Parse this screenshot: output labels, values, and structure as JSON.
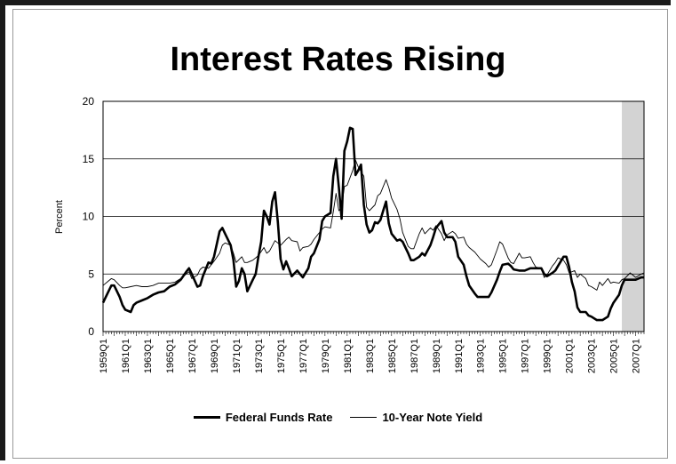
{
  "chart_data": {
    "type": "line",
    "title": "Interest Rates Rising",
    "ylabel": "Percent",
    "xlabel": "",
    "ylim": [
      0,
      20
    ],
    "yticks": [
      0,
      5,
      10,
      15,
      20
    ],
    "grid": "horizontal",
    "x_start_year": 1959,
    "x_end_year": 2007.75,
    "x_tick_labels": [
      "1959Q1",
      "1961Q1",
      "1963Q1",
      "1965Q1",
      "1967Q1",
      "1969Q1",
      "1971Q1",
      "1973Q1",
      "1975Q1",
      "1977Q1",
      "1979Q1",
      "1981Q1",
      "1983Q1",
      "1985Q1",
      "1987Q1",
      "1989Q1",
      "1991Q1",
      "1993Q1",
      "1995Q1",
      "1997Q1",
      "1999Q1",
      "2001Q1",
      "2003Q1",
      "2005Q1",
      "2007Q1"
    ],
    "shaded_region": {
      "start": 2005.75,
      "end": 2007.75,
      "color": "#d3d3d3"
    },
    "legend_position": "bottom",
    "series": [
      {
        "name": "Federal Funds Rate",
        "style": "thick",
        "color": "#000000",
        "points": [
          [
            1959.0,
            2.5
          ],
          [
            1959.5,
            3.5
          ],
          [
            1959.75,
            4.0
          ],
          [
            1960.0,
            4.0
          ],
          [
            1960.5,
            3.0
          ],
          [
            1960.75,
            2.3
          ],
          [
            1961.0,
            1.9
          ],
          [
            1961.5,
            1.7
          ],
          [
            1961.75,
            2.3
          ],
          [
            1962.0,
            2.5
          ],
          [
            1962.5,
            2.7
          ],
          [
            1963.0,
            2.9
          ],
          [
            1963.5,
            3.2
          ],
          [
            1964.0,
            3.4
          ],
          [
            1964.5,
            3.5
          ],
          [
            1965.0,
            3.9
          ],
          [
            1965.5,
            4.1
          ],
          [
            1966.0,
            4.5
          ],
          [
            1966.5,
            5.2
          ],
          [
            1966.75,
            5.5
          ],
          [
            1967.0,
            5.0
          ],
          [
            1967.5,
            3.9
          ],
          [
            1967.75,
            4.0
          ],
          [
            1968.0,
            4.8
          ],
          [
            1968.5,
            6.0
          ],
          [
            1968.75,
            5.9
          ],
          [
            1969.0,
            6.5
          ],
          [
            1969.5,
            8.7
          ],
          [
            1969.75,
            9.0
          ],
          [
            1970.0,
            8.5
          ],
          [
            1970.5,
            7.5
          ],
          [
            1970.75,
            6.2
          ],
          [
            1971.0,
            3.9
          ],
          [
            1971.25,
            4.4
          ],
          [
            1971.5,
            5.5
          ],
          [
            1971.75,
            5.0
          ],
          [
            1972.0,
            3.5
          ],
          [
            1972.5,
            4.5
          ],
          [
            1972.75,
            5.0
          ],
          [
            1973.0,
            6.5
          ],
          [
            1973.25,
            7.8
          ],
          [
            1973.5,
            10.5
          ],
          [
            1973.75,
            10.0
          ],
          [
            1974.0,
            9.3
          ],
          [
            1974.25,
            11.3
          ],
          [
            1974.5,
            12.1
          ],
          [
            1974.75,
            9.5
          ],
          [
            1975.0,
            6.3
          ],
          [
            1975.25,
            5.4
          ],
          [
            1975.5,
            6.1
          ],
          [
            1975.75,
            5.5
          ],
          [
            1976.0,
            4.8
          ],
          [
            1976.5,
            5.3
          ],
          [
            1976.75,
            5.0
          ],
          [
            1977.0,
            4.7
          ],
          [
            1977.5,
            5.5
          ],
          [
            1977.75,
            6.5
          ],
          [
            1978.0,
            6.8
          ],
          [
            1978.5,
            8.0
          ],
          [
            1978.75,
            9.6
          ],
          [
            1979.0,
            10.0
          ],
          [
            1979.5,
            10.3
          ],
          [
            1979.75,
            13.5
          ],
          [
            1980.0,
            15.0
          ],
          [
            1980.25,
            12.5
          ],
          [
            1980.5,
            9.8
          ],
          [
            1980.75,
            15.7
          ],
          [
            1981.0,
            16.5
          ],
          [
            1981.25,
            17.7
          ],
          [
            1981.5,
            17.6
          ],
          [
            1981.75,
            13.6
          ],
          [
            1982.0,
            14.0
          ],
          [
            1982.25,
            14.5
          ],
          [
            1982.5,
            11.0
          ],
          [
            1982.75,
            9.3
          ],
          [
            1983.0,
            8.6
          ],
          [
            1983.25,
            8.8
          ],
          [
            1983.5,
            9.5
          ],
          [
            1983.75,
            9.4
          ],
          [
            1984.0,
            9.7
          ],
          [
            1984.25,
            10.5
          ],
          [
            1984.5,
            11.3
          ],
          [
            1984.75,
            9.4
          ],
          [
            1985.0,
            8.5
          ],
          [
            1985.5,
            7.9
          ],
          [
            1985.75,
            8.0
          ],
          [
            1986.0,
            7.8
          ],
          [
            1986.5,
            6.8
          ],
          [
            1986.75,
            6.2
          ],
          [
            1987.0,
            6.2
          ],
          [
            1987.5,
            6.5
          ],
          [
            1987.75,
            6.8
          ],
          [
            1988.0,
            6.6
          ],
          [
            1988.5,
            7.5
          ],
          [
            1988.75,
            8.2
          ],
          [
            1989.0,
            9.0
          ],
          [
            1989.5,
            9.6
          ],
          [
            1989.75,
            8.6
          ],
          [
            1990.0,
            8.2
          ],
          [
            1990.5,
            8.2
          ],
          [
            1990.75,
            7.8
          ],
          [
            1991.0,
            6.5
          ],
          [
            1991.5,
            5.8
          ],
          [
            1991.75,
            4.8
          ],
          [
            1992.0,
            4.0
          ],
          [
            1992.5,
            3.3
          ],
          [
            1992.75,
            3.0
          ],
          [
            1993.0,
            3.0
          ],
          [
            1993.5,
            3.0
          ],
          [
            1993.75,
            3.0
          ],
          [
            1994.0,
            3.4
          ],
          [
            1994.5,
            4.5
          ],
          [
            1994.75,
            5.2
          ],
          [
            1995.0,
            5.8
          ],
          [
            1995.5,
            5.9
          ],
          [
            1995.75,
            5.7
          ],
          [
            1996.0,
            5.4
          ],
          [
            1996.5,
            5.3
          ],
          [
            1997.0,
            5.3
          ],
          [
            1997.5,
            5.5
          ],
          [
            1998.0,
            5.5
          ],
          [
            1998.5,
            5.5
          ],
          [
            1998.75,
            5.0
          ],
          [
            1999.0,
            4.8
          ],
          [
            1999.5,
            5.1
          ],
          [
            1999.75,
            5.3
          ],
          [
            2000.0,
            5.7
          ],
          [
            2000.5,
            6.5
          ],
          [
            2000.75,
            6.5
          ],
          [
            2001.0,
            5.6
          ],
          [
            2001.25,
            4.3
          ],
          [
            2001.5,
            3.5
          ],
          [
            2001.75,
            2.1
          ],
          [
            2002.0,
            1.7
          ],
          [
            2002.5,
            1.7
          ],
          [
            2002.75,
            1.4
          ],
          [
            2003.0,
            1.3
          ],
          [
            2003.5,
            1.0
          ],
          [
            2004.0,
            1.0
          ],
          [
            2004.5,
            1.3
          ],
          [
            2004.75,
            2.0
          ],
          [
            2005.0,
            2.5
          ],
          [
            2005.5,
            3.2
          ],
          [
            2005.75,
            4.0
          ],
          [
            2006.0,
            4.5
          ],
          [
            2006.5,
            4.5
          ],
          [
            2007.0,
            4.5
          ],
          [
            2007.5,
            4.7
          ],
          [
            2007.75,
            4.7
          ]
        ]
      },
      {
        "name": "10-Year Note Yield",
        "style": "thin",
        "color": "#000000",
        "points": [
          [
            1959.0,
            4.0
          ],
          [
            1959.5,
            4.4
          ],
          [
            1959.75,
            4.6
          ],
          [
            1960.0,
            4.5
          ],
          [
            1960.5,
            4.0
          ],
          [
            1960.75,
            3.8
          ],
          [
            1961.0,
            3.8
          ],
          [
            1961.5,
            3.9
          ],
          [
            1962.0,
            4.0
          ],
          [
            1962.5,
            3.9
          ],
          [
            1963.0,
            3.9
          ],
          [
            1963.5,
            4.0
          ],
          [
            1964.0,
            4.2
          ],
          [
            1964.5,
            4.2
          ],
          [
            1965.0,
            4.2
          ],
          [
            1965.5,
            4.3
          ],
          [
            1966.0,
            4.6
          ],
          [
            1966.5,
            5.0
          ],
          [
            1966.75,
            5.2
          ],
          [
            1967.0,
            4.6
          ],
          [
            1967.5,
            4.9
          ],
          [
            1967.75,
            5.4
          ],
          [
            1968.0,
            5.6
          ],
          [
            1968.5,
            5.5
          ],
          [
            1968.75,
            5.8
          ],
          [
            1969.0,
            6.1
          ],
          [
            1969.5,
            6.8
          ],
          [
            1969.75,
            7.5
          ],
          [
            1970.0,
            7.7
          ],
          [
            1970.5,
            7.5
          ],
          [
            1970.75,
            6.8
          ],
          [
            1971.0,
            6.0
          ],
          [
            1971.5,
            6.5
          ],
          [
            1971.75,
            6.0
          ],
          [
            1972.0,
            6.0
          ],
          [
            1972.5,
            6.2
          ],
          [
            1972.75,
            6.4
          ],
          [
            1973.0,
            6.6
          ],
          [
            1973.5,
            7.3
          ],
          [
            1973.75,
            6.8
          ],
          [
            1974.0,
            7.0
          ],
          [
            1974.5,
            7.9
          ],
          [
            1974.75,
            7.7
          ],
          [
            1975.0,
            7.5
          ],
          [
            1975.5,
            8.0
          ],
          [
            1975.75,
            8.2
          ],
          [
            1976.0,
            7.9
          ],
          [
            1976.5,
            7.8
          ],
          [
            1976.75,
            7.0
          ],
          [
            1977.0,
            7.3
          ],
          [
            1977.5,
            7.4
          ],
          [
            1977.75,
            7.6
          ],
          [
            1978.0,
            8.0
          ],
          [
            1978.5,
            8.6
          ],
          [
            1978.75,
            8.9
          ],
          [
            1979.0,
            9.1
          ],
          [
            1979.5,
            9.0
          ],
          [
            1979.75,
            10.4
          ],
          [
            1980.0,
            12.0
          ],
          [
            1980.25,
            10.5
          ],
          [
            1980.5,
            10.8
          ],
          [
            1980.75,
            12.6
          ],
          [
            1981.0,
            12.7
          ],
          [
            1981.5,
            14.0
          ],
          [
            1981.75,
            14.9
          ],
          [
            1982.0,
            14.3
          ],
          [
            1982.5,
            13.5
          ],
          [
            1982.75,
            10.8
          ],
          [
            1983.0,
            10.5
          ],
          [
            1983.5,
            11.0
          ],
          [
            1983.75,
            11.8
          ],
          [
            1984.0,
            12.0
          ],
          [
            1984.5,
            13.2
          ],
          [
            1984.75,
            12.5
          ],
          [
            1985.0,
            11.6
          ],
          [
            1985.5,
            10.6
          ],
          [
            1985.75,
            9.8
          ],
          [
            1986.0,
            8.6
          ],
          [
            1986.5,
            7.4
          ],
          [
            1986.75,
            7.2
          ],
          [
            1987.0,
            7.2
          ],
          [
            1987.5,
            8.5
          ],
          [
            1987.75,
            9.0
          ],
          [
            1988.0,
            8.5
          ],
          [
            1988.5,
            9.0
          ],
          [
            1988.75,
            8.8
          ],
          [
            1989.0,
            9.2
          ],
          [
            1989.5,
            8.5
          ],
          [
            1989.75,
            7.9
          ],
          [
            1990.0,
            8.4
          ],
          [
            1990.5,
            8.7
          ],
          [
            1990.75,
            8.5
          ],
          [
            1991.0,
            8.1
          ],
          [
            1991.5,
            8.2
          ],
          [
            1991.75,
            7.6
          ],
          [
            1992.0,
            7.3
          ],
          [
            1992.5,
            6.9
          ],
          [
            1992.75,
            6.6
          ],
          [
            1993.0,
            6.3
          ],
          [
            1993.5,
            5.9
          ],
          [
            1993.75,
            5.6
          ],
          [
            1994.0,
            5.8
          ],
          [
            1994.5,
            7.1
          ],
          [
            1994.75,
            7.8
          ],
          [
            1995.0,
            7.6
          ],
          [
            1995.5,
            6.4
          ],
          [
            1995.75,
            6.0
          ],
          [
            1996.0,
            5.9
          ],
          [
            1996.5,
            6.8
          ],
          [
            1996.75,
            6.4
          ],
          [
            1997.0,
            6.4
          ],
          [
            1997.5,
            6.5
          ],
          [
            1997.75,
            6.0
          ],
          [
            1998.0,
            5.6
          ],
          [
            1998.5,
            5.5
          ],
          [
            1998.75,
            4.7
          ],
          [
            1999.0,
            4.9
          ],
          [
            1999.5,
            5.7
          ],
          [
            1999.75,
            6.0
          ],
          [
            2000.0,
            6.4
          ],
          [
            2000.5,
            6.2
          ],
          [
            2000.75,
            5.8
          ],
          [
            2001.0,
            5.1
          ],
          [
            2001.5,
            5.3
          ],
          [
            2001.75,
            4.7
          ],
          [
            2002.0,
            5.0
          ],
          [
            2002.5,
            4.6
          ],
          [
            2002.75,
            4.0
          ],
          [
            2003.0,
            3.9
          ],
          [
            2003.5,
            3.6
          ],
          [
            2003.75,
            4.3
          ],
          [
            2004.0,
            4.0
          ],
          [
            2004.5,
            4.6
          ],
          [
            2004.75,
            4.2
          ],
          [
            2005.0,
            4.3
          ],
          [
            2005.5,
            4.2
          ],
          [
            2005.75,
            4.5
          ],
          [
            2006.0,
            4.6
          ],
          [
            2006.5,
            5.1
          ],
          [
            2006.75,
            4.9
          ],
          [
            2007.0,
            4.7
          ],
          [
            2007.5,
            5.0
          ],
          [
            2007.75,
            5.1
          ]
        ]
      }
    ]
  }
}
